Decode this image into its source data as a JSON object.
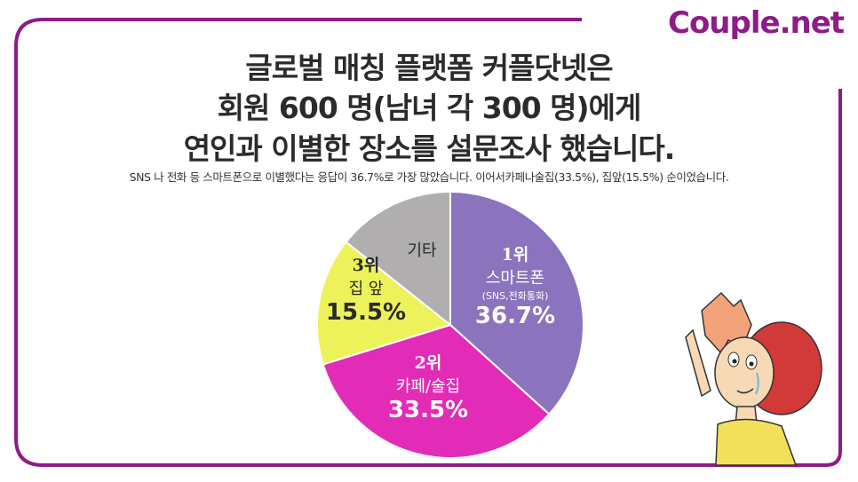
{
  "brand": "Couple.net",
  "headline": {
    "line1": "글로벌 매칭 플랫폼 커플닷넷은",
    "line2": "회원 600 명(남녀 각 300 명)에게",
    "line3": "연인과 이별한 장소를 설문조사 했습니다."
  },
  "subtitle": "SNS 나 전화 등 스마트폰으로 이별했다는 응답이 36.7%로 가장 많았습니다. 이어서카페나술집(33.5%), 집앞(15.5%) 순이었습니다.",
  "labels": {
    "smartphone": {
      "rank": "1위",
      "name": "스마트폰",
      "note": "(SNS,전화통화)",
      "pct": "36.7%"
    },
    "cafe": {
      "rank": "2위",
      "name": "카페/술집",
      "pct": "33.5%"
    },
    "home": {
      "rank": "3위",
      "name": "집 앞",
      "pct": "15.5%"
    },
    "other": {
      "name": "기타"
    }
  },
  "colors": {
    "frame": "#8e1b88",
    "smartphone": "#8b73bd",
    "cafe": "#e22bb7",
    "home": "#eef25a",
    "other": "#b0aeae"
  },
  "chart_data": {
    "type": "pie",
    "title": "",
    "slices": [
      {
        "label": "스마트폰",
        "value": 36.7,
        "color": "#8b73bd"
      },
      {
        "label": "카페/술집",
        "value": 33.5,
        "color": "#e22bb7"
      },
      {
        "label": "집 앞",
        "value": 15.5,
        "color": "#eef25a"
      },
      {
        "label": "기타",
        "value": 14.3,
        "color": "#b0aeae"
      }
    ]
  }
}
